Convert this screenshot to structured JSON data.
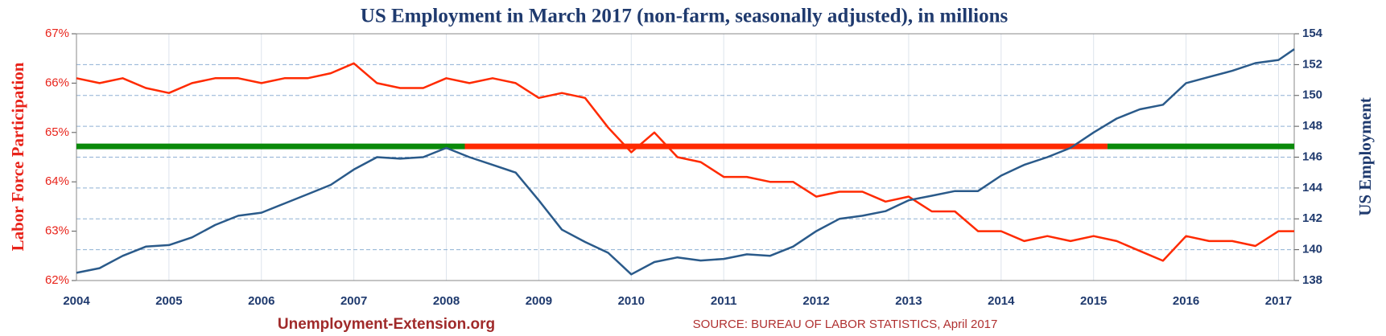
{
  "chart_data": {
    "type": "line",
    "title": "US Employment in March 2017 (non-farm, seasonally adjusted), in millions",
    "y_label": "Labor Force Participation",
    "y2_label": "US Employment",
    "footer_left": "Unemployment-Extension.org",
    "footer_right": "SOURCE: BUREAU OF LABOR STATISTICS,  April 2017",
    "x": [
      2004,
      2004.25,
      2004.5,
      2004.75,
      2005,
      2005.25,
      2005.5,
      2005.75,
      2006,
      2006.25,
      2006.5,
      2006.75,
      2007,
      2007.25,
      2007.5,
      2007.75,
      2008,
      2008.25,
      2008.5,
      2008.75,
      2009,
      2009.25,
      2009.5,
      2009.75,
      2010,
      2010.25,
      2010.5,
      2010.75,
      2011,
      2011.25,
      2011.5,
      2011.75,
      2012,
      2012.25,
      2012.5,
      2012.75,
      2013,
      2013.25,
      2013.5,
      2013.75,
      2014,
      2014.25,
      2014.5,
      2014.75,
      2015,
      2015.25,
      2015.5,
      2015.75,
      2016,
      2016.25,
      2016.5,
      2016.75,
      2017,
      2017.17
    ],
    "series": [
      {
        "name": "Labor Force Participation",
        "color": "#ff2a00",
        "axis": "y",
        "values": [
          66.1,
          66.0,
          66.1,
          65.9,
          65.8,
          66.0,
          66.1,
          66.1,
          66.0,
          66.1,
          66.1,
          66.2,
          66.4,
          66.0,
          65.9,
          65.9,
          66.1,
          66.0,
          66.1,
          66.0,
          65.7,
          65.8,
          65.7,
          65.1,
          64.6,
          65.0,
          64.5,
          64.4,
          64.1,
          64.1,
          64.0,
          64.0,
          63.7,
          63.8,
          63.8,
          63.6,
          63.7,
          63.4,
          63.4,
          63.0,
          63.0,
          62.8,
          62.9,
          62.8,
          62.9,
          62.8,
          62.6,
          62.4,
          62.9,
          62.8,
          62.8,
          62.7,
          63.0,
          63.0
        ]
      },
      {
        "name": "US Employment",
        "color": "#2a5a8a",
        "axis": "y2",
        "values": [
          138.5,
          138.8,
          139.6,
          140.2,
          140.3,
          140.8,
          141.6,
          142.2,
          142.4,
          143.0,
          143.6,
          144.2,
          145.2,
          146.0,
          145.9,
          146.0,
          146.6,
          146.0,
          145.5,
          145.0,
          143.2,
          141.3,
          140.5,
          139.8,
          138.4,
          139.2,
          139.5,
          139.3,
          139.4,
          139.7,
          139.6,
          140.2,
          141.2,
          142.0,
          142.2,
          142.5,
          143.2,
          143.5,
          143.8,
          143.8,
          144.8,
          145.5,
          146.0,
          146.6,
          147.6,
          148.5,
          149.1,
          149.4,
          150.8,
          151.2,
          151.6,
          152.1,
          152.3,
          153.0
        ]
      }
    ],
    "reference_line": {
      "value": 146.7,
      "axis": "y2",
      "segments": [
        {
          "from": 2004,
          "to": 2008.2,
          "color": "#0a8a0a"
        },
        {
          "from": 2008.2,
          "to": 2015.15,
          "color": "#ff2a00"
        },
        {
          "from": 2015.15,
          "to": 2017.17,
          "color": "#0a8a0a"
        }
      ]
    },
    "xlim": [
      2004,
      2017.17
    ],
    "xticks": [
      2004,
      2005,
      2006,
      2007,
      2008,
      2009,
      2010,
      2011,
      2012,
      2013,
      2014,
      2015,
      2016,
      2017
    ],
    "ylim": [
      62,
      67
    ],
    "yticks": [
      {
        "value": 62,
        "label": "62%"
      },
      {
        "value": 63,
        "label": "63%"
      },
      {
        "value": 64,
        "label": "64%"
      },
      {
        "value": 65,
        "label": "65%"
      },
      {
        "value": 66,
        "label": "66%"
      },
      {
        "value": 67,
        "label": "67%"
      }
    ],
    "y2lim": [
      138,
      154
    ],
    "y2ticks": [
      138,
      140,
      142,
      144,
      146,
      148,
      150,
      152,
      154
    ],
    "grid": true
  }
}
